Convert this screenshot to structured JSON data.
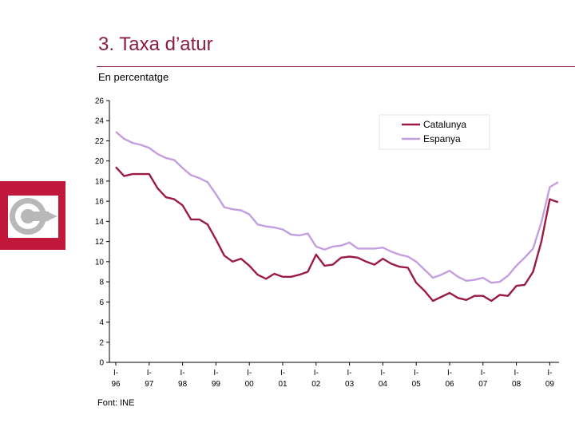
{
  "page": {
    "title": "3. Taxa d’atur",
    "subtitle": "En percentatge",
    "source": "Font: INE"
  },
  "logo": {
    "icon": "c-arrow-logo-icon",
    "color": "#c0173b"
  },
  "chart_data": {
    "type": "line",
    "title": "",
    "xlabel": "",
    "ylabel": "",
    "ylim": [
      0,
      26
    ],
    "y_ticks": [
      0,
      2,
      4,
      6,
      8,
      10,
      12,
      14,
      16,
      18,
      20,
      22,
      24,
      26
    ],
    "x_ticks": [
      {
        "pre": "I-",
        "year": "96"
      },
      {
        "pre": "I-",
        "year": "97"
      },
      {
        "pre": "I-",
        "year": "98"
      },
      {
        "pre": "I-",
        "year": "99"
      },
      {
        "pre": "I-",
        "year": "00"
      },
      {
        "pre": "I-",
        "year": "01"
      },
      {
        "pre": "I-",
        "year": "02"
      },
      {
        "pre": "I-",
        "year": "03"
      },
      {
        "pre": "I-",
        "year": "04"
      },
      {
        "pre": "I-",
        "year": "05"
      },
      {
        "pre": "I-",
        "year": "06"
      },
      {
        "pre": "I-",
        "year": "07"
      },
      {
        "pre": "I-",
        "year": "08"
      },
      {
        "pre": "I-",
        "year": "09"
      }
    ],
    "legend_position": "top-right",
    "series": [
      {
        "name": "Catalunya",
        "color": "#9b1b46",
        "values": [
          19.4,
          18.5,
          18.7,
          18.7,
          18.7,
          17.3,
          16.4,
          16.2,
          15.6,
          14.2,
          14.2,
          13.7,
          12.2,
          10.6,
          10.0,
          10.3,
          9.6,
          8.7,
          8.3,
          8.8,
          8.5,
          8.5,
          8.7,
          9.0,
          10.7,
          9.6,
          9.7,
          10.4,
          10.5,
          10.4,
          10.0,
          9.7,
          10.3,
          9.8,
          9.5,
          9.4,
          7.9,
          7.1,
          6.1,
          6.5,
          6.9,
          6.4,
          6.2,
          6.6,
          6.6,
          6.1,
          6.7,
          6.6,
          7.6,
          7.7,
          9.0,
          12.0,
          16.2,
          15.9
        ]
      },
      {
        "name": "Espanya",
        "color": "#c39ee0",
        "values": [
          22.9,
          22.2,
          21.8,
          21.6,
          21.3,
          20.7,
          20.3,
          20.1,
          19.3,
          18.6,
          18.3,
          17.9,
          16.7,
          15.4,
          15.2,
          15.1,
          14.7,
          13.7,
          13.5,
          13.4,
          13.2,
          12.7,
          12.6,
          12.8,
          11.5,
          11.2,
          11.5,
          11.6,
          11.9,
          11.3,
          11.3,
          11.3,
          11.4,
          11.0,
          10.7,
          10.5,
          10.0,
          9.2,
          8.4,
          8.7,
          9.1,
          8.5,
          8.1,
          8.2,
          8.4,
          7.9,
          8.0,
          8.6,
          9.6,
          10.4,
          11.3,
          13.9,
          17.4,
          17.9
        ]
      }
    ]
  }
}
